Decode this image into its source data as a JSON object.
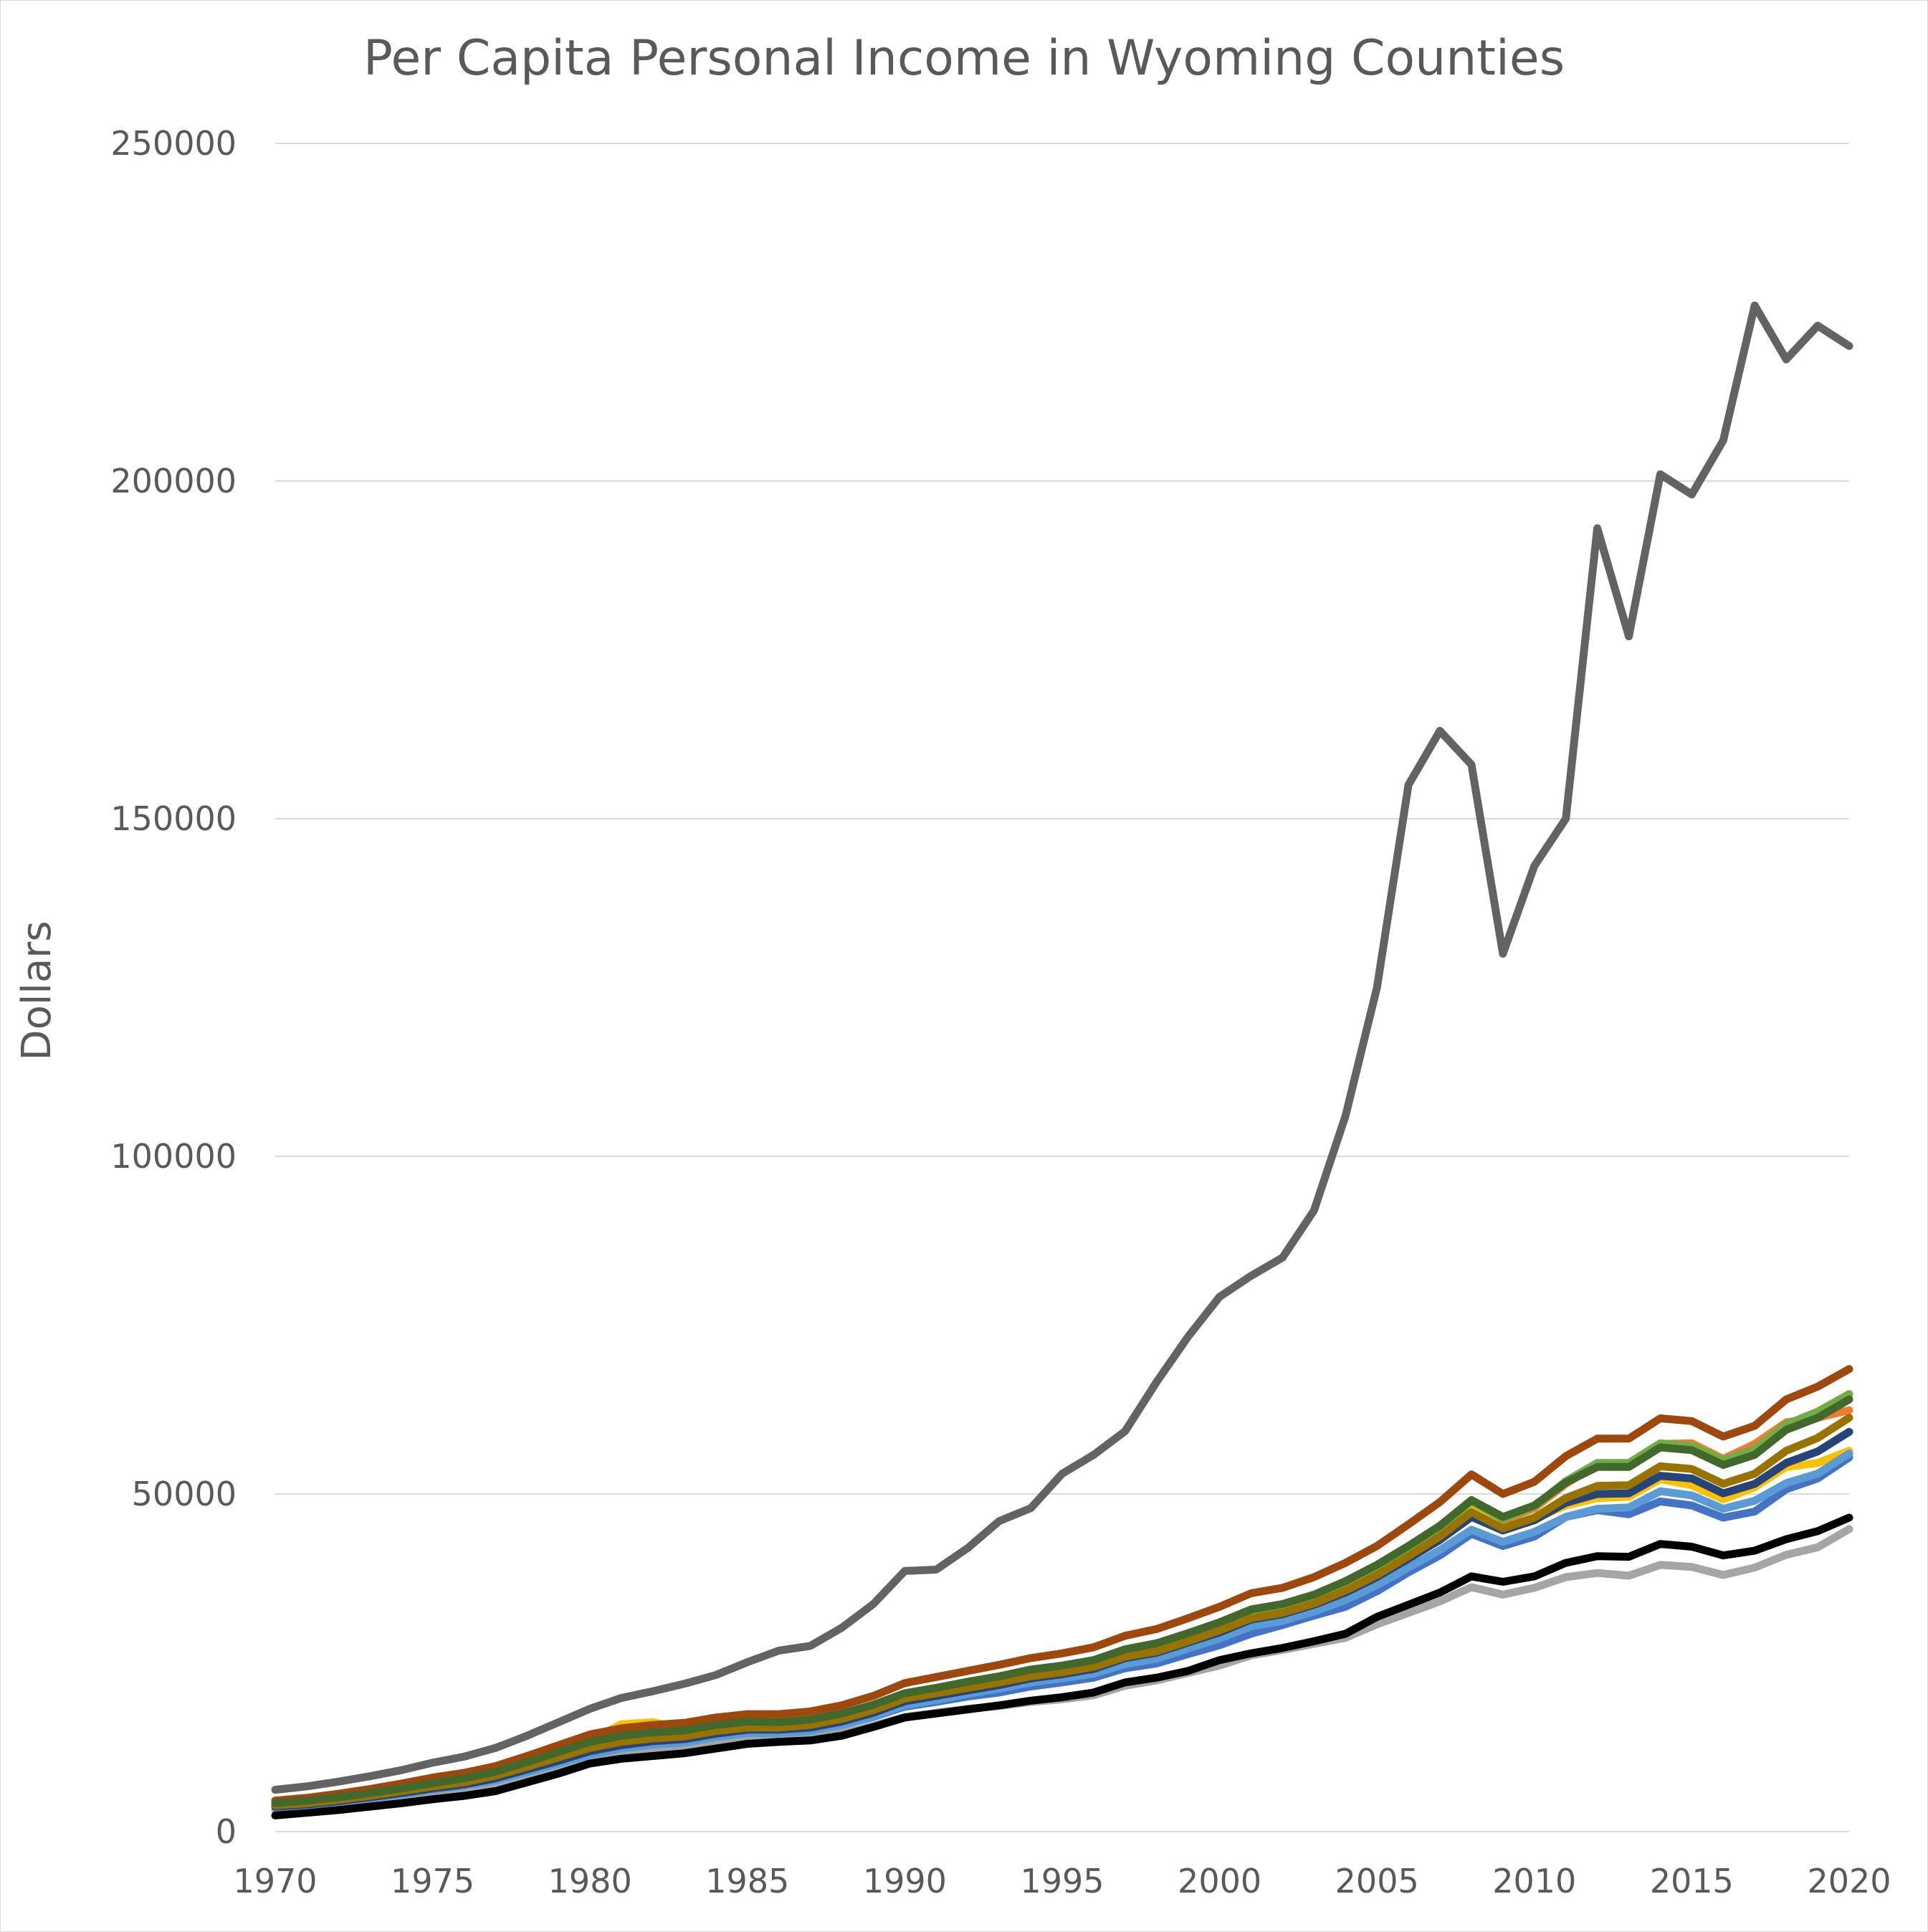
{
  "chart_data": {
    "type": "line",
    "title": "Per Capita Personal Income in Wyoming Counties",
    "ylabel": "Dollars",
    "xlabel": "",
    "xlim": [
      1970,
      2020
    ],
    "ylim": [
      0,
      250000
    ],
    "y_ticks": [
      "0",
      "50000",
      "100000",
      "150000",
      "200000",
      "250000"
    ],
    "x_ticks": [
      "1970",
      "1975",
      "1980",
      "1985",
      "1990",
      "1995",
      "2000",
      "2005",
      "2010",
      "2015",
      "2020"
    ],
    "grid": "horizontal",
    "legend": "none",
    "x": [
      1970,
      1971,
      1972,
      1973,
      1974,
      1975,
      1976,
      1977,
      1978,
      1979,
      1980,
      1981,
      1982,
      1983,
      1984,
      1985,
      1986,
      1987,
      1988,
      1989,
      1990,
      1991,
      1992,
      1993,
      1994,
      1995,
      1996,
      1997,
      1998,
      1999,
      2000,
      2001,
      2002,
      2003,
      2004,
      2005,
      2006,
      2007,
      2008,
      2009,
      2010,
      2011,
      2012,
      2013,
      2014,
      2015,
      2016,
      2017,
      2018,
      2019,
      2020
    ],
    "series": [
      {
        "color": "#a5a5a5",
        "values": [
          3200,
          3500,
          4000,
          4600,
          5200,
          5900,
          6400,
          7000,
          8100,
          9200,
          10500,
          11600,
          12100,
          12300,
          13100,
          13500,
          13600,
          13800,
          14600,
          15700,
          17000,
          17600,
          18200,
          18600,
          19200,
          19600,
          20200,
          21600,
          22400,
          23500,
          24600,
          26100,
          26900,
          27800,
          28700,
          30700,
          32400,
          34100,
          36200,
          35100,
          36100,
          37700,
          38300,
          37900,
          39500,
          39200,
          38000,
          39100,
          41000,
          42100,
          44800
        ]
      },
      {
        "color": "#000000",
        "values": [
          2400,
          2800,
          3200,
          3700,
          4200,
          4800,
          5300,
          6000,
          7300,
          8600,
          10100,
          10800,
          11200,
          11600,
          12300,
          13000,
          13300,
          13500,
          14200,
          15500,
          16900,
          17500,
          18100,
          18700,
          19400,
          19900,
          20600,
          22100,
          22800,
          23800,
          25400,
          26400,
          27200,
          28200,
          29300,
          31800,
          33600,
          35400,
          37800,
          37000,
          37800,
          39800,
          40800,
          40700,
          42600,
          42200,
          40900,
          41600,
          43300,
          44500,
          46500
        ]
      },
      {
        "color": "#4472c4",
        "values": [
          3900,
          4200,
          4700,
          5200,
          5800,
          6600,
          7200,
          8100,
          9300,
          10600,
          11900,
          12600,
          13100,
          13400,
          14200,
          14800,
          14700,
          15000,
          15800,
          17000,
          18500,
          19200,
          20000,
          20600,
          21500,
          22100,
          22800,
          24200,
          24900,
          26300,
          27600,
          29300,
          30600,
          32000,
          33300,
          35600,
          38400,
          40900,
          44100,
          42300,
          43700,
          46600,
          47600,
          47000,
          48900,
          48300,
          46500,
          47400,
          50700,
          52300,
          55400
        ]
      },
      {
        "color": "#ed7d31",
        "values": [
          4100,
          4500,
          5000,
          5600,
          6300,
          7100,
          7800,
          8800,
          10100,
          11600,
          13000,
          14000,
          14600,
          15000,
          15800,
          16300,
          16300,
          16700,
          17500,
          18700,
          20400,
          21100,
          21900,
          22600,
          23600,
          24200,
          25000,
          26600,
          27500,
          29000,
          30600,
          32500,
          33200,
          34600,
          36700,
          39000,
          42200,
          45100,
          48700,
          46000,
          47900,
          51500,
          54400,
          54200,
          57400,
          57500,
          55200,
          57400,
          60600,
          61300,
          62400
        ]
      },
      {
        "color": "#ffc000",
        "values": [
          4000,
          4400,
          4900,
          5500,
          6300,
          7100,
          7800,
          8800,
          10300,
          11800,
          13500,
          15900,
          16200,
          15200,
          15700,
          16000,
          15900,
          16200,
          17000,
          18200,
          19900,
          20700,
          21500,
          22300,
          23300,
          23900,
          24600,
          26200,
          27100,
          28400,
          30000,
          31800,
          32600,
          33800,
          35500,
          37900,
          40900,
          43900,
          48200,
          44700,
          46300,
          48300,
          49400,
          49600,
          52200,
          51300,
          49200,
          51000,
          54000,
          54600,
          56400
        ]
      },
      {
        "color": "#5b9bd5",
        "values": [
          3600,
          3900,
          4400,
          4900,
          5500,
          6200,
          6800,
          7600,
          8800,
          10100,
          11400,
          12300,
          12900,
          13200,
          14000,
          14600,
          14600,
          14900,
          15800,
          17100,
          18700,
          19500,
          20400,
          21200,
          22100,
          22700,
          23400,
          24800,
          25600,
          27100,
          28600,
          30400,
          31200,
          32600,
          34300,
          36500,
          39100,
          41700,
          44700,
          42900,
          44400,
          46600,
          47800,
          48000,
          50400,
          49800,
          47800,
          49000,
          51600,
          53000,
          56000
        ]
      },
      {
        "color": "#70ad47",
        "values": [
          4300,
          4700,
          5200,
          5800,
          6500,
          7300,
          8000,
          8900,
          10200,
          11600,
          13100,
          14000,
          14500,
          14800,
          15500,
          15900,
          15800,
          16200,
          17000,
          18300,
          20000,
          20800,
          21600,
          22400,
          23300,
          23900,
          24700,
          26300,
          27200,
          28700,
          30300,
          32200,
          33000,
          34500,
          36500,
          38900,
          41900,
          45000,
          48900,
          46300,
          48200,
          51900,
          54600,
          54600,
          57500,
          57100,
          55000,
          56600,
          60300,
          62200,
          64800
        ]
      },
      {
        "color": "#264478",
        "values": [
          3700,
          4000,
          4500,
          5100,
          5700,
          6400,
          7000,
          7900,
          9200,
          10500,
          11900,
          12800,
          13400,
          13700,
          14500,
          15100,
          15100,
          15400,
          16300,
          17600,
          19300,
          20100,
          20900,
          21700,
          22700,
          23300,
          24100,
          25700,
          26500,
          28000,
          29500,
          31400,
          32200,
          33600,
          35400,
          37700,
          40400,
          43200,
          46600,
          44600,
          46100,
          48700,
          50000,
          50100,
          52700,
          52300,
          50100,
          51500,
          54600,
          56300,
          59200
        ]
      },
      {
        "color": "#9e480e",
        "values": [
          4600,
          5000,
          5600,
          6300,
          7100,
          8000,
          8700,
          9700,
          11200,
          12800,
          14400,
          15300,
          15800,
          16100,
          16900,
          17400,
          17400,
          17800,
          18700,
          20100,
          22000,
          22900,
          23800,
          24700,
          25700,
          26400,
          27300,
          29000,
          30000,
          31600,
          33300,
          35300,
          36100,
          37700,
          39800,
          42300,
          45500,
          48800,
          52900,
          50000,
          51800,
          55600,
          58200,
          58200,
          61200,
          60800,
          58500,
          60100,
          64000,
          65900,
          68500
        ]
      },
      {
        "color": "#997300",
        "values": [
          3900,
          4200,
          4700,
          5300,
          6000,
          6700,
          7300,
          8300,
          9600,
          11000,
          12400,
          13300,
          13800,
          14100,
          14900,
          15400,
          15400,
          15800,
          16700,
          18000,
          19700,
          20500,
          21300,
          22100,
          23000,
          23600,
          24400,
          25900,
          26700,
          28200,
          29800,
          31600,
          32400,
          33800,
          35700,
          38000,
          40800,
          43700,
          47300,
          44900,
          46500,
          49400,
          51200,
          51300,
          54100,
          53700,
          51500,
          53000,
          56400,
          58300,
          61300
        ]
      },
      {
        "color": "#43682b",
        "values": [
          4200,
          4600,
          5100,
          5700,
          6400,
          7200,
          7900,
          8900,
          10300,
          11800,
          13300,
          14200,
          14700,
          15000,
          15800,
          16300,
          16200,
          16600,
          17500,
          18800,
          20500,
          21300,
          22200,
          23000,
          24000,
          24600,
          25400,
          27000,
          27900,
          29400,
          31000,
          32900,
          33700,
          35100,
          37100,
          39500,
          42300,
          45300,
          49100,
          46600,
          48300,
          51700,
          54000,
          54000,
          56900,
          56500,
          54300,
          55800,
          59500,
          61300,
          64000
        ]
      },
      {
        "color": "#636363",
        "values": [
          6200,
          6700,
          7400,
          8200,
          9100,
          10200,
          11100,
          12400,
          14200,
          16200,
          18200,
          19800,
          20800,
          21900,
          23200,
          25100,
          26800,
          27500,
          30200,
          33700,
          38600,
          38800,
          42000,
          46000,
          47900,
          53000,
          55800,
          59300,
          66600,
          73300,
          79200,
          82300,
          85000,
          92000,
          106000,
          125000,
          155000,
          163000,
          158000,
          130000,
          143000,
          150000,
          193000,
          177000,
          201000,
          198000,
          206000,
          226000,
          218000,
          223000,
          220000
        ]
      }
    ]
  }
}
